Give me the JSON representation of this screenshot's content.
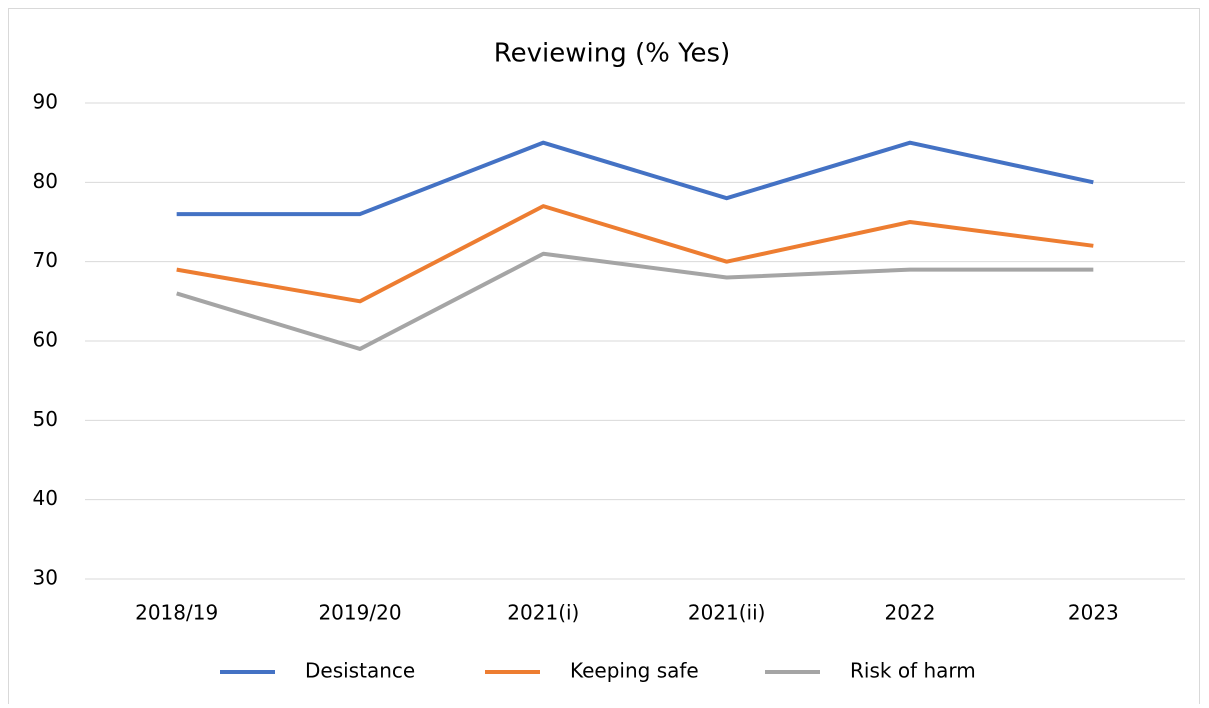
{
  "chart_data": {
    "type": "line",
    "title": "Reviewing (% Yes)",
    "categories": [
      "2018/19",
      "2019/20",
      "2021(i)",
      "2021(ii)",
      "2022",
      "2023"
    ],
    "series": [
      {
        "name": "Desistance",
        "color": "#4472c4",
        "values": [
          76,
          76,
          85,
          78,
          85,
          80
        ]
      },
      {
        "name": "Keeping safe",
        "color": "#ed7d31",
        "values": [
          69,
          65,
          77,
          70,
          75,
          72
        ]
      },
      {
        "name": "Risk of harm",
        "color": "#a5a5a5",
        "values": [
          66,
          59,
          71,
          68,
          69,
          69
        ]
      }
    ],
    "ylim": [
      30,
      90
    ],
    "yticks": [
      30,
      40,
      50,
      60,
      70,
      80,
      90
    ],
    "grid": true,
    "legend": "bottom"
  }
}
